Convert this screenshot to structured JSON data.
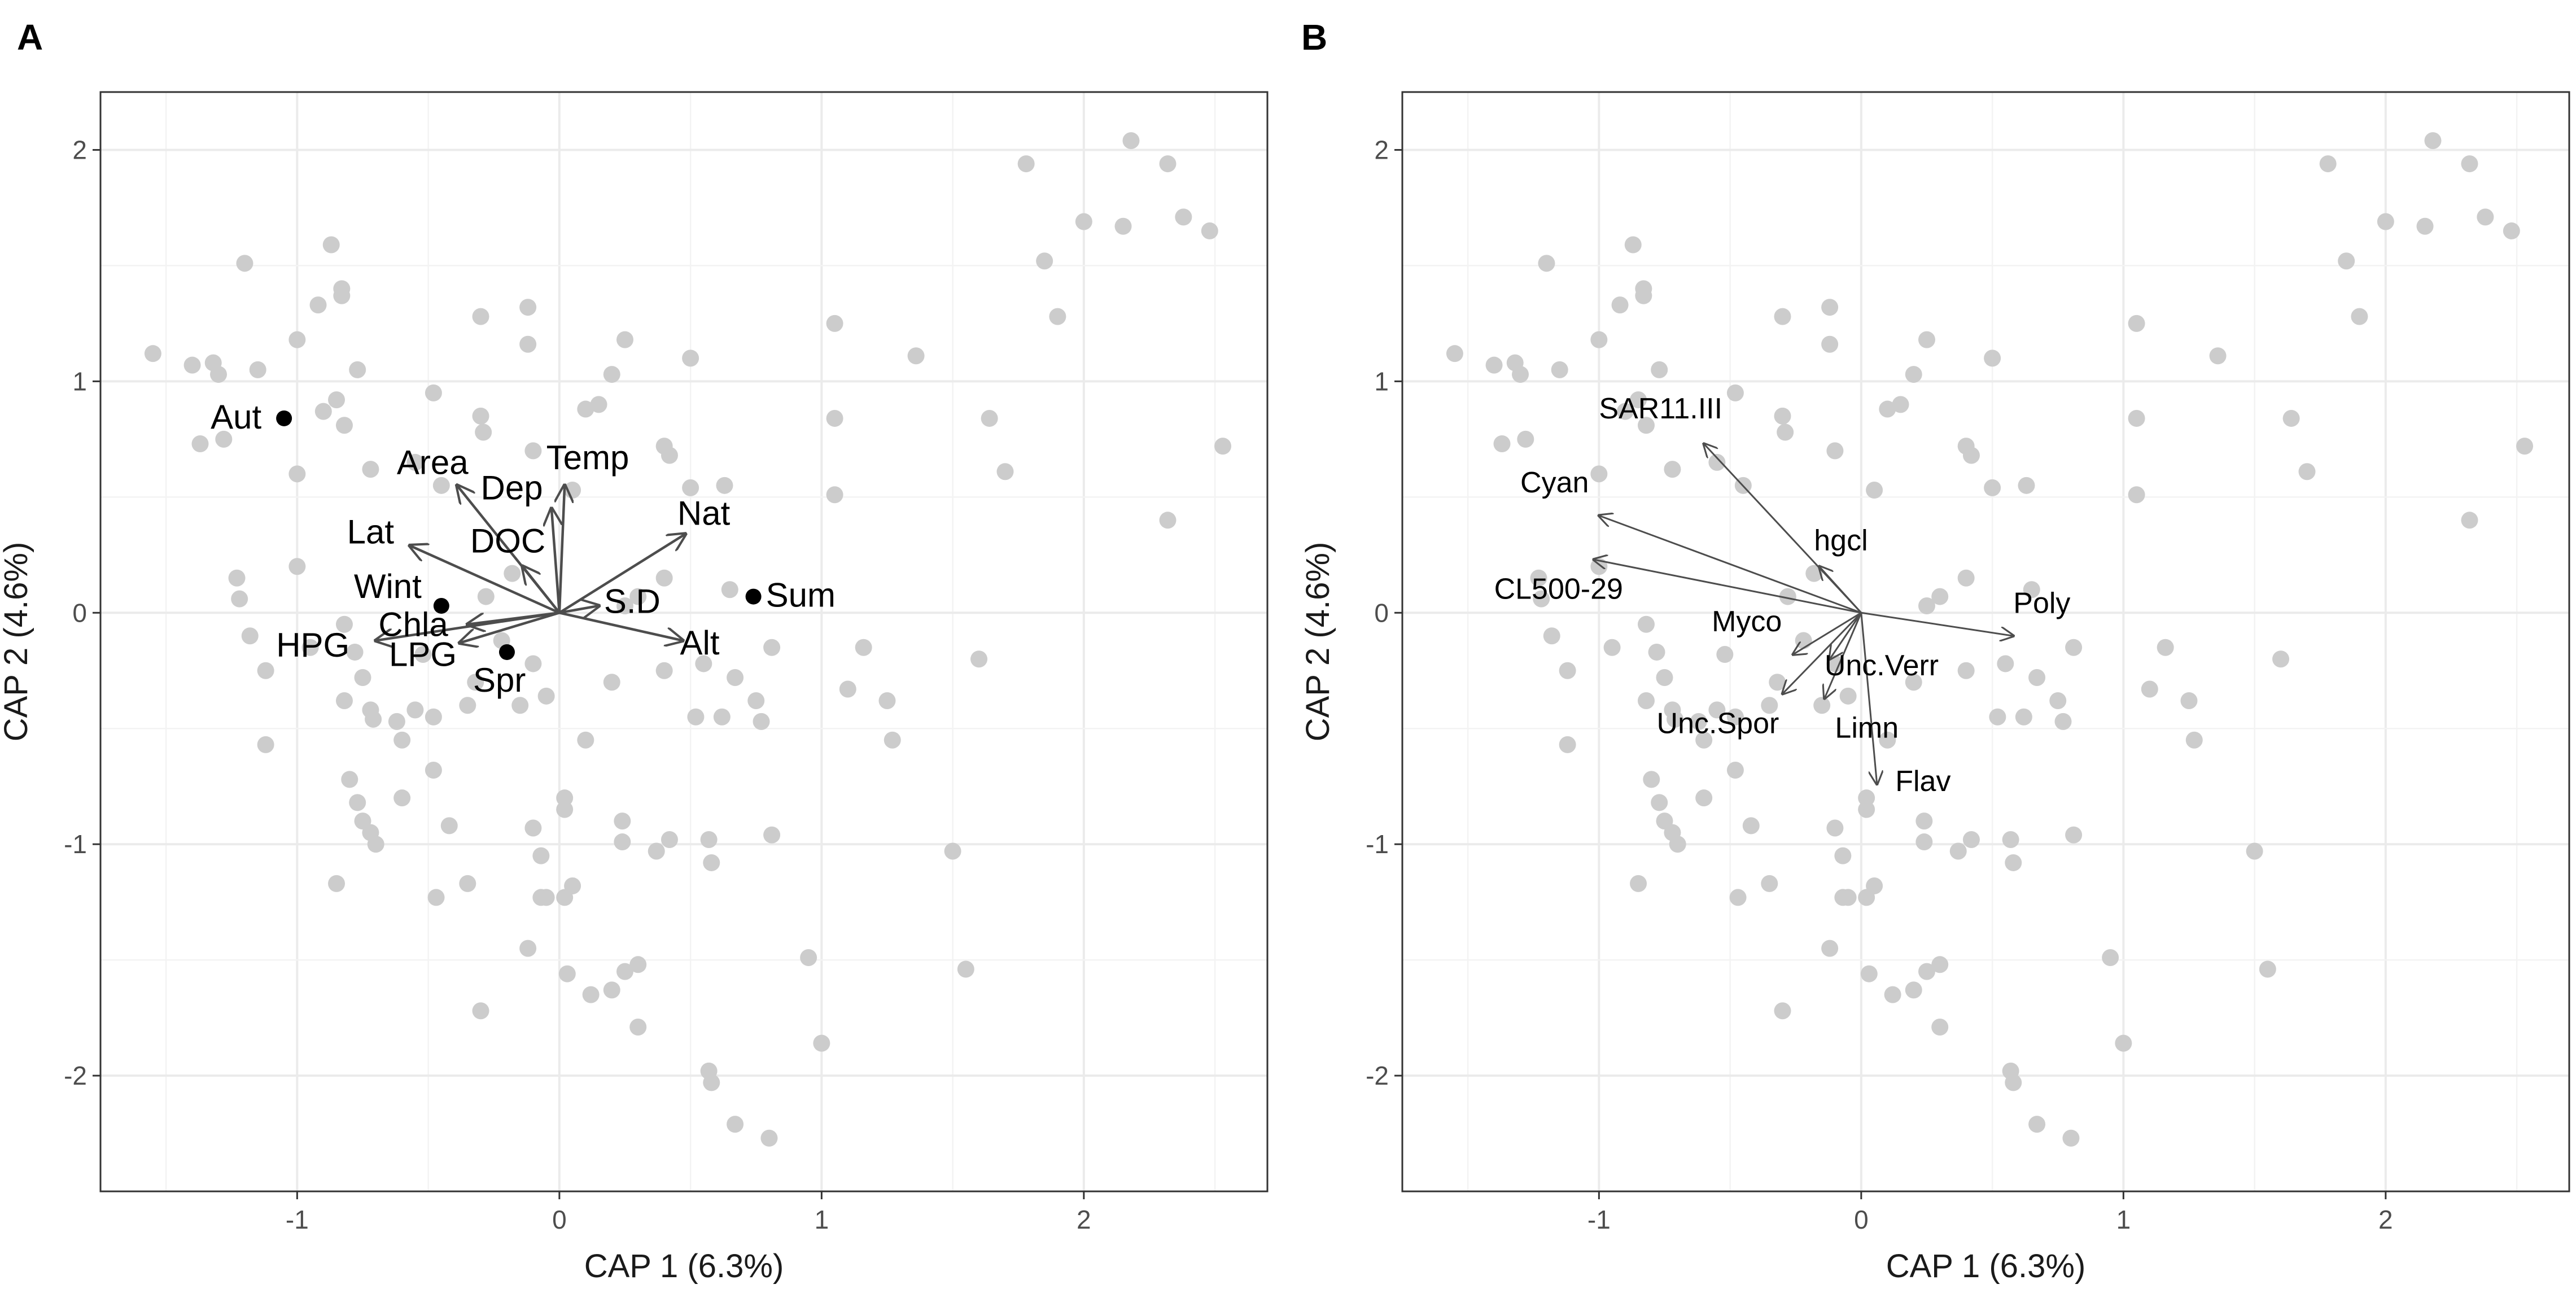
{
  "figure": {
    "panels": [
      "A",
      "B"
    ]
  },
  "chart_data": [
    {
      "panel": "A",
      "type": "scatter",
      "xlabel": "CAP 1 (6.3%)",
      "ylabel": "CAP 2 (4.6%)",
      "xlim": [
        -1.75,
        2.7
      ],
      "ylim": [
        -2.5,
        2.25
      ],
      "xticks": [
        -1,
        0,
        1,
        2
      ],
      "yticks": [
        -2,
        -1,
        0,
        1,
        2
      ],
      "grid": true,
      "colors": {
        "points": "#cccccc",
        "centroids": "#000000",
        "arrows": "#4d4d4d",
        "grid": "#ebebeb"
      },
      "points": [
        [
          -1.55,
          1.12
        ],
        [
          -1.4,
          1.07
        ],
        [
          -1.32,
          1.08
        ],
        [
          -1.3,
          1.03
        ],
        [
          -1.2,
          1.51
        ],
        [
          -1.15,
          1.05
        ],
        [
          -1.0,
          1.18
        ],
        [
          -0.92,
          1.33
        ],
        [
          -0.87,
          1.59
        ],
        [
          -0.83,
          1.37
        ],
        [
          -0.83,
          1.4
        ],
        [
          -0.77,
          1.05
        ],
        [
          -0.3,
          1.28
        ],
        [
          -0.12,
          1.32
        ],
        [
          -0.12,
          1.16
        ],
        [
          0.25,
          1.18
        ],
        [
          0.2,
          1.03
        ],
        [
          0.5,
          1.1
        ],
        [
          1.05,
          1.25
        ],
        [
          1.36,
          1.11
        ],
        [
          -1.37,
          0.73
        ],
        [
          -1.28,
          0.75
        ],
        [
          -1.0,
          0.6
        ],
        [
          -0.9,
          0.87
        ],
        [
          -0.85,
          0.92
        ],
        [
          -0.82,
          0.81
        ],
        [
          -0.72,
          0.62
        ],
        [
          -0.55,
          0.65
        ],
        [
          -0.48,
          0.95
        ],
        [
          -0.45,
          0.55
        ],
        [
          -0.3,
          0.85
        ],
        [
          -0.29,
          0.78
        ],
        [
          -0.1,
          0.7
        ],
        [
          0.05,
          0.53
        ],
        [
          0.1,
          0.88
        ],
        [
          0.15,
          0.9
        ],
        [
          0.4,
          0.72
        ],
        [
          0.42,
          0.68
        ],
        [
          0.63,
          0.55
        ],
        [
          0.5,
          0.54
        ],
        [
          1.05,
          0.84
        ],
        [
          1.05,
          0.51
        ],
        [
          1.64,
          0.84
        ],
        [
          1.7,
          0.61
        ],
        [
          2.53,
          0.72
        ],
        [
          2.32,
          0.4
        ],
        [
          -1.23,
          0.15
        ],
        [
          -1.22,
          0.06
        ],
        [
          -1.0,
          0.2
        ],
        [
          -1.18,
          -0.1
        ],
        [
          -1.12,
          -0.25
        ],
        [
          -1.12,
          -0.57
        ],
        [
          -0.95,
          -0.15
        ],
        [
          -0.82,
          -0.05
        ],
        [
          -0.78,
          -0.17
        ],
        [
          -0.75,
          -0.28
        ],
        [
          -0.82,
          -0.38
        ],
        [
          -0.72,
          -0.42
        ],
        [
          -0.71,
          -0.46
        ],
        [
          -0.62,
          -0.47
        ],
        [
          -0.6,
          -0.55
        ],
        [
          -0.55,
          -0.42
        ],
        [
          -0.52,
          -0.18
        ],
        [
          -0.48,
          -0.45
        ],
        [
          -0.35,
          -0.4
        ],
        [
          -0.32,
          -0.3
        ],
        [
          -0.28,
          0.07
        ],
        [
          -0.22,
          -0.12
        ],
        [
          -0.18,
          0.17
        ],
        [
          -0.15,
          -0.4
        ],
        [
          -0.1,
          -0.22
        ],
        [
          -0.05,
          -0.36
        ],
        [
          0.1,
          -0.55
        ],
        [
          0.2,
          -0.3
        ],
        [
          0.25,
          0.03
        ],
        [
          0.3,
          0.07
        ],
        [
          0.4,
          -0.25
        ],
        [
          0.4,
          0.15
        ],
        [
          0.52,
          -0.45
        ],
        [
          0.55,
          -0.22
        ],
        [
          0.62,
          -0.45
        ],
        [
          0.65,
          0.1
        ],
        [
          0.67,
          -0.28
        ],
        [
          0.75,
          -0.38
        ],
        [
          0.77,
          -0.47
        ],
        [
          0.81,
          -0.15
        ],
        [
          1.1,
          -0.33
        ],
        [
          1.16,
          -0.15
        ],
        [
          1.25,
          -0.38
        ],
        [
          1.27,
          -0.55
        ],
        [
          1.6,
          -0.2
        ],
        [
          -0.8,
          -0.72
        ],
        [
          -0.77,
          -0.82
        ],
        [
          -0.75,
          -0.9
        ],
        [
          -0.72,
          -0.95
        ],
        [
          -0.7,
          -1.0
        ],
        [
          -0.6,
          -0.8
        ],
        [
          -0.48,
          -0.68
        ],
        [
          -0.42,
          -0.92
        ],
        [
          -0.85,
          -1.17
        ],
        [
          -0.47,
          -1.23
        ],
        [
          -0.35,
          -1.17
        ],
        [
          -0.1,
          -0.93
        ],
        [
          -0.07,
          -1.05
        ],
        [
          0.02,
          -0.8
        ],
        [
          0.02,
          -0.85
        ],
        [
          0.24,
          -0.9
        ],
        [
          0.24,
          -0.99
        ],
        [
          0.37,
          -1.03
        ],
        [
          0.42,
          -0.98
        ],
        [
          0.57,
          -0.98
        ],
        [
          0.58,
          -1.08
        ],
        [
          0.81,
          -0.96
        ],
        [
          -0.12,
          -1.45
        ],
        [
          -0.07,
          -1.23
        ],
        [
          -0.05,
          -1.23
        ],
        [
          0.02,
          -1.23
        ],
        [
          0.03,
          -1.56
        ],
        [
          0.12,
          -1.65
        ],
        [
          0.2,
          -1.63
        ],
        [
          0.25,
          -1.55
        ],
        [
          0.3,
          -1.52
        ],
        [
          0.3,
          -1.79
        ],
        [
          0.57,
          -1.98
        ],
        [
          0.05,
          -1.18
        ],
        [
          -0.3,
          -1.72
        ],
        [
          0.95,
          -1.49
        ],
        [
          1.0,
          -1.86
        ],
        [
          0.58,
          -2.03
        ],
        [
          0.67,
          -2.21
        ],
        [
          0.8,
          -2.27
        ],
        [
          1.5,
          -1.03
        ],
        [
          1.55,
          -1.54
        ],
        [
          1.78,
          1.94
        ],
        [
          1.85,
          1.52
        ],
        [
          1.9,
          1.28
        ],
        [
          2.0,
          1.69
        ],
        [
          2.15,
          1.67
        ],
        [
          2.18,
          2.04
        ],
        [
          2.32,
          1.94
        ],
        [
          2.38,
          1.71
        ],
        [
          2.48,
          1.65
        ]
      ],
      "centroids": [
        {
          "label": "Aut",
          "x": -1.05,
          "y": 0.84
        },
        {
          "label": "Sum",
          "x": 0.74,
          "y": 0.07
        },
        {
          "label": "Wint",
          "x": -0.45,
          "y": 0.03
        },
        {
          "label": "Spr",
          "x": -0.2,
          "y": -0.17
        }
      ],
      "arrows": [
        {
          "label": "Temp",
          "x": 0.02,
          "y": 0.55,
          "lx": -0.05,
          "ly": 0.62
        },
        {
          "label": "Dep",
          "x": -0.03,
          "y": 0.45,
          "lx": -0.3,
          "ly": 0.49
        },
        {
          "label": "Area",
          "x": -0.39,
          "y": 0.55,
          "lx": -0.62,
          "ly": 0.6
        },
        {
          "label": "DOC",
          "x": -0.14,
          "y": 0.2,
          "lx": -0.34,
          "ly": 0.26
        },
        {
          "label": "Lat",
          "x": -0.57,
          "y": 0.29,
          "lx": -0.81,
          "ly": 0.3
        },
        {
          "label": "Nat",
          "x": 0.48,
          "y": 0.34,
          "lx": 0.45,
          "ly": 0.38
        },
        {
          "label": "S.D",
          "x": 0.15,
          "y": 0.03,
          "lx": 0.17,
          "ly": 0.0
        },
        {
          "label": "Alt",
          "x": 0.47,
          "y": -0.12,
          "lx": 0.46,
          "ly": -0.18
        },
        {
          "label": "Chla",
          "x": -0.35,
          "y": -0.05,
          "lx": -0.69,
          "ly": -0.1
        },
        {
          "label": "HPG",
          "x": -0.7,
          "y": -0.12,
          "lx": -1.08,
          "ly": -0.19
        },
        {
          "label": "LPG",
          "x": -0.38,
          "y": -0.13,
          "lx": -0.65,
          "ly": -0.23
        }
      ]
    },
    {
      "panel": "B",
      "type": "scatter",
      "xlabel": "CAP 1 (6.3%)",
      "ylabel": "CAP 2 (4.6%)",
      "xlim": [
        -1.75,
        2.7
      ],
      "ylim": [
        -2.5,
        2.25
      ],
      "xticks": [
        -1,
        0,
        1,
        2
      ],
      "yticks": [
        -2,
        -1,
        0,
        1,
        2
      ],
      "grid": true,
      "colors": {
        "points": "#cccccc",
        "arrows": "#4d4d4d",
        "grid": "#ebebeb"
      },
      "arrows": [
        {
          "label": "SAR11.III",
          "x": -0.6,
          "y": 0.73,
          "lx": -1.0,
          "ly": 0.84
        },
        {
          "label": "Cyan",
          "x": -1.0,
          "y": 0.42,
          "lx": -1.3,
          "ly": 0.52
        },
        {
          "label": "hgcl",
          "x": -0.16,
          "y": 0.2,
          "lx": -0.18,
          "ly": 0.27
        },
        {
          "label": "CL500-29",
          "x": -1.02,
          "y": 0.23,
          "lx": -1.4,
          "ly": 0.06
        },
        {
          "label": "Poly",
          "x": 0.58,
          "y": -0.1,
          "lx": 0.58,
          "ly": 0.0
        },
        {
          "label": "Myco",
          "x": -0.26,
          "y": -0.18,
          "lx": -0.57,
          "ly": -0.08
        },
        {
          "label": "Unc.Verr",
          "x": -0.14,
          "y": -0.37,
          "lx": -0.14,
          "ly": -0.27
        },
        {
          "label": "Unc.Spor",
          "x": -0.3,
          "y": -0.35,
          "lx": -0.78,
          "ly": -0.52
        },
        {
          "label": "Limn",
          "x": -0.12,
          "y": -0.2,
          "lx": -0.1,
          "ly": -0.54
        },
        {
          "label": "Flav",
          "x": 0.06,
          "y": -0.74,
          "lx": 0.13,
          "ly": -0.77
        }
      ]
    }
  ]
}
